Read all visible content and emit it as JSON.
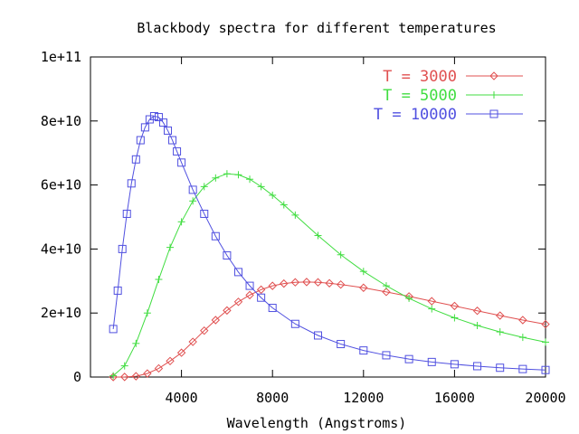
{
  "chart_data": {
    "type": "line",
    "title": "Blackbody spectra for different temperatures",
    "xlabel": "Wavelength (Angstroms)",
    "ylabel": "",
    "xlim": [
      0,
      20000
    ],
    "ylim": [
      0,
      100000000000.0
    ],
    "x_ticks": [
      {
        "value": 4000,
        "label": "4000"
      },
      {
        "value": 8000,
        "label": "8000"
      },
      {
        "value": 12000,
        "label": "12000"
      },
      {
        "value": 16000,
        "label": "16000"
      },
      {
        "value": 20000,
        "label": "20000"
      }
    ],
    "y_ticks": [
      {
        "value": 0,
        "label": "0"
      },
      {
        "value": 20000000000.0,
        "label": "2e+10"
      },
      {
        "value": 40000000000.0,
        "label": "4e+10"
      },
      {
        "value": 60000000000.0,
        "label": "6e+10"
      },
      {
        "value": 80000000000.0,
        "label": "8e+10"
      },
      {
        "value": 100000000000.0,
        "label": "1e+11"
      }
    ],
    "grid": false,
    "legend_position": "top-right",
    "series": [
      {
        "name": "T = 3000",
        "color": "#e05050",
        "marker": "diamond",
        "x": [
          1000,
          1500,
          2000,
          2500,
          3000,
          3500,
          4000,
          4500,
          5000,
          5500,
          6000,
          6500,
          7000,
          7500,
          8000,
          8500,
          9000,
          9500,
          10000,
          10500,
          11000,
          12000,
          13000,
          14000,
          15000,
          16000,
          17000,
          18000,
          19000,
          20000
        ],
        "y": [
          0,
          30000000.0,
          250000000.0,
          1100000000.0,
          2700000000.0,
          5000000000.0,
          7600000000.0,
          11000000000.0,
          14500000000.0,
          17800000000.0,
          20800000000.0,
          23500000000.0,
          25600000000.0,
          27300000000.0,
          28500000000.0,
          29200000000.0,
          29600000000.0,
          29700000000.0,
          29600000000.0,
          29300000000.0,
          28900000000.0,
          27900000000.0,
          26600000000.0,
          25200000000.0,
          23700000000.0,
          22200000000.0,
          20700000000.0,
          19200000000.0,
          17800000000.0,
          16500000000.0
        ]
      },
      {
        "name": "T = 5000",
        "color": "#40dd40",
        "marker": "plus",
        "x": [
          1000,
          1500,
          2000,
          2500,
          3000,
          3500,
          4000,
          4500,
          5000,
          5500,
          6000,
          6500,
          7000,
          7500,
          8000,
          8500,
          9000,
          10000,
          11000,
          12000,
          13000,
          14000,
          15000,
          16000,
          17000,
          18000,
          19000,
          20000
        ],
        "y": [
          400000000.0,
          3500000000.0,
          10500000000.0,
          20000000000.0,
          30500000000.0,
          40500000000.0,
          48500000000.0,
          55000000000.0,
          59500000000.0,
          62200000000.0,
          63500000000.0,
          63200000000.0,
          61800000000.0,
          59500000000.0,
          56800000000.0,
          53800000000.0,
          50600000000.0,
          44200000000.0,
          38200000000.0,
          33000000000.0,
          28500000000.0,
          24600000000.0,
          21300000000.0,
          18500000000.0,
          16100000000.0,
          14100000000.0,
          12400000000.0,
          10900000000.0
        ]
      },
      {
        "name": "T = 10000",
        "color": "#5050e0",
        "marker": "square",
        "x": [
          1000,
          1200,
          1400,
          1600,
          1800,
          2000,
          2200,
          2400,
          2600,
          2800,
          3000,
          3200,
          3400,
          3600,
          3800,
          4000,
          4500,
          5000,
          5500,
          6000,
          6500,
          7000,
          7500,
          8000,
          9000,
          10000,
          11000,
          12000,
          13000,
          14000,
          15000,
          16000,
          17000,
          18000,
          19000,
          20000
        ],
        "y": [
          15000000000.0,
          27000000000.0,
          40000000000.0,
          51000000000.0,
          60500000000.0,
          68000000000.0,
          74000000000.0,
          78000000000.0,
          80500000000.0,
          81500000000.0,
          81200000000.0,
          79500000000.0,
          77000000000.0,
          74000000000.0,
          70500000000.0,
          67000000000.0,
          58500000000.0,
          51000000000.0,
          44000000000.0,
          38000000000.0,
          32800000000.0,
          28500000000.0,
          24800000000.0,
          21600000000.0,
          16600000000.0,
          13000000000.0,
          10300000000.0,
          8300000000.0,
          6800000000.0,
          5600000000.0,
          4700000000.0,
          4000000000.0,
          3400000000.0,
          2900000000.0,
          2500000000.0,
          2200000000.0
        ]
      }
    ]
  }
}
